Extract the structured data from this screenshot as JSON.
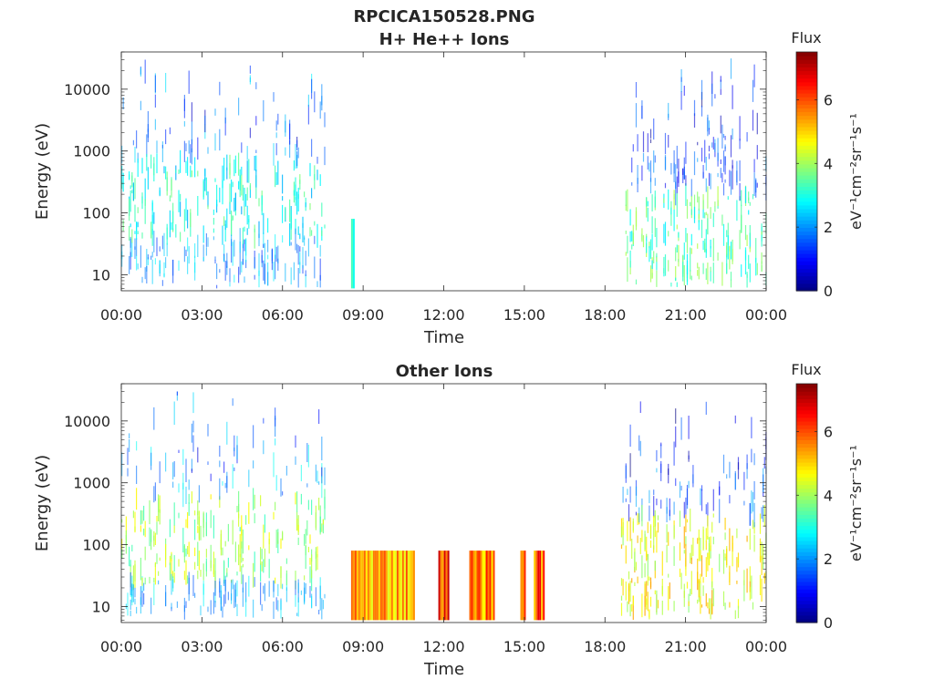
{
  "figure": {
    "file_title": "RPCICA150528.PNG"
  },
  "chart_data": [
    {
      "type": "heatmap",
      "title": "H+ He++ Ions",
      "xlabel": "Time",
      "ylabel": "Energy (eV)",
      "x_ticks": [
        "00:00",
        "03:00",
        "06:00",
        "09:00",
        "12:00",
        "15:00",
        "18:00",
        "21:00",
        "00:00"
      ],
      "x_range_hours": [
        0,
        24
      ],
      "y_scale": "log",
      "y_range": [
        5.5,
        40000
      ],
      "y_ticks": [
        10,
        100,
        1000,
        10000
      ],
      "y_tick_labels": [
        "10",
        "100",
        "1000",
        "10000"
      ],
      "colorbar": {
        "label": "Flux",
        "units": "eV-1cm-2sr-1s-1",
        "range": [
          0,
          7.5
        ],
        "ticks": [
          0,
          2,
          4,
          6
        ],
        "tick_labels": [
          "0",
          "2",
          "4",
          "6"
        ],
        "colormap": "jet"
      },
      "segments": [
        {
          "start_hour": 0.0,
          "end_hour": 7.55,
          "emin": 6,
          "emax": 30000,
          "core_low": 40,
          "core_high": 700,
          "flux_core": 3.0,
          "flux_high_energy": 2.0
        },
        {
          "start_hour": 8.55,
          "end_hour": 8.62,
          "emin": 6,
          "emax": 80,
          "core_low": 6,
          "core_high": 80,
          "flux_core": 2.8,
          "flux_high_energy": 2.8
        },
        {
          "start_hour": 18.6,
          "end_hour": 24.0,
          "emin": 6,
          "emax": 35000,
          "core_low": 6,
          "core_high": 200,
          "flux_core": 3.4,
          "flux_high_energy": 1.4
        }
      ]
    },
    {
      "type": "heatmap",
      "title": "Other Ions",
      "xlabel": "Time",
      "ylabel": "Energy (eV)",
      "x_ticks": [
        "00:00",
        "03:00",
        "06:00",
        "09:00",
        "12:00",
        "15:00",
        "18:00",
        "21:00",
        "00:00"
      ],
      "x_range_hours": [
        0,
        24
      ],
      "y_scale": "log",
      "y_range": [
        5.5,
        40000
      ],
      "y_ticks": [
        10,
        100,
        1000,
        10000
      ],
      "y_tick_labels": [
        "10",
        "100",
        "1000",
        "10000"
      ],
      "colorbar": {
        "label": "Flux",
        "units": "eV-1cm-2sr-1s-1",
        "range": [
          0,
          7.5
        ],
        "ticks": [
          0,
          2,
          4,
          6
        ],
        "tick_labels": [
          "0",
          "2",
          "4",
          "6"
        ],
        "colormap": "jet"
      },
      "segments": [
        {
          "start_hour": 0.0,
          "end_hour": 7.55,
          "emin": 6,
          "emax": 30000,
          "core_low": 25,
          "core_high": 600,
          "flux_core": 4.0,
          "flux_high_energy": 2.2
        },
        {
          "start_hour": 8.55,
          "end_hour": 10.9,
          "emin": 6,
          "emax": 80,
          "core_low": 6,
          "core_high": 80,
          "flux_core": 5.3,
          "flux_high_energy": 5.3
        },
        {
          "start_hour": 11.8,
          "end_hour": 12.2,
          "emin": 6,
          "emax": 80,
          "core_low": 6,
          "core_high": 80,
          "flux_core": 6.2,
          "flux_high_energy": 6.2
        },
        {
          "start_hour": 12.95,
          "end_hour": 13.9,
          "emin": 6,
          "emax": 80,
          "core_low": 6,
          "core_high": 80,
          "flux_core": 5.6,
          "flux_high_energy": 5.6
        },
        {
          "start_hour": 14.85,
          "end_hour": 15.05,
          "emin": 6,
          "emax": 80,
          "core_low": 6,
          "core_high": 80,
          "flux_core": 5.8,
          "flux_high_energy": 5.8
        },
        {
          "start_hour": 15.35,
          "end_hour": 15.75,
          "emin": 6,
          "emax": 80,
          "core_low": 6,
          "core_high": 80,
          "flux_core": 5.9,
          "flux_high_energy": 5.9
        },
        {
          "start_hour": 18.6,
          "end_hour": 24.0,
          "emin": 6,
          "emax": 25000,
          "core_low": 6,
          "core_high": 300,
          "flux_core": 4.6,
          "flux_high_energy": 1.5
        }
      ]
    }
  ]
}
